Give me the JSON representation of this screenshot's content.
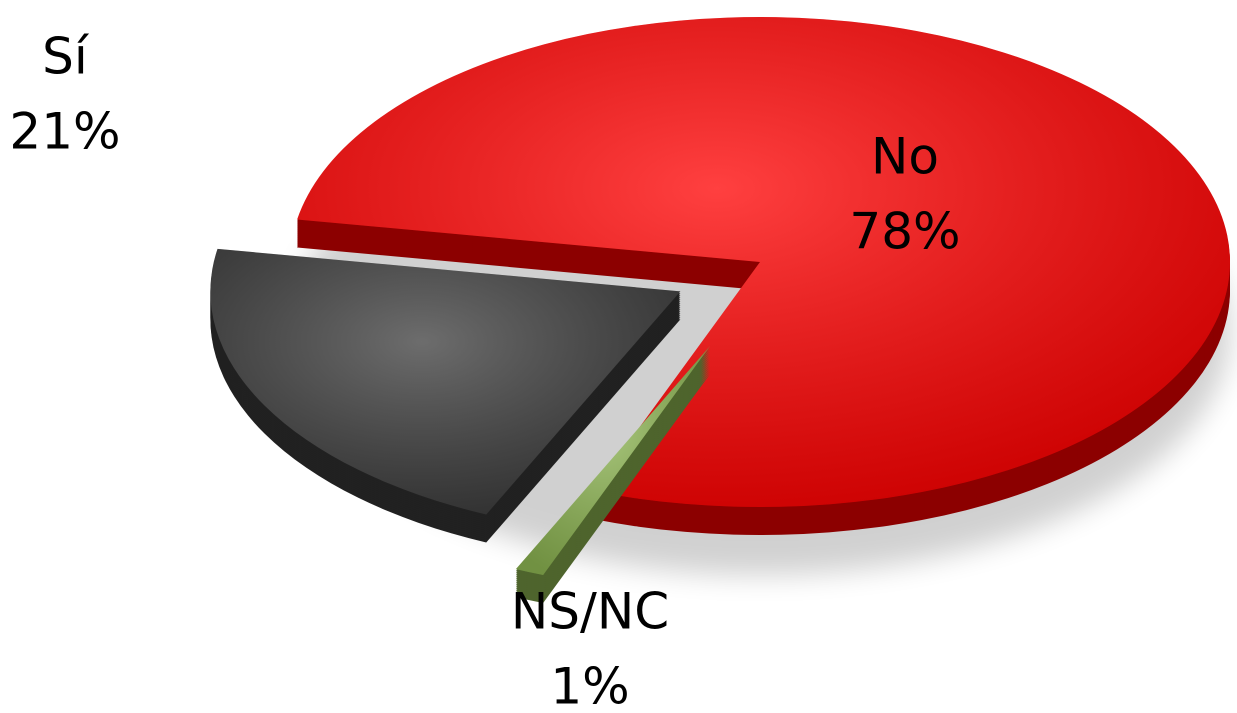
{
  "chart_data": {
    "type": "pie",
    "categories": [
      "Sí",
      "No",
      "NS/NC"
    ],
    "values": [
      21,
      78,
      1
    ],
    "value_labels": [
      "21%",
      "78%",
      "1%"
    ],
    "colors": [
      "#3c3c3c",
      "#ff0000",
      "#8db552"
    ]
  }
}
